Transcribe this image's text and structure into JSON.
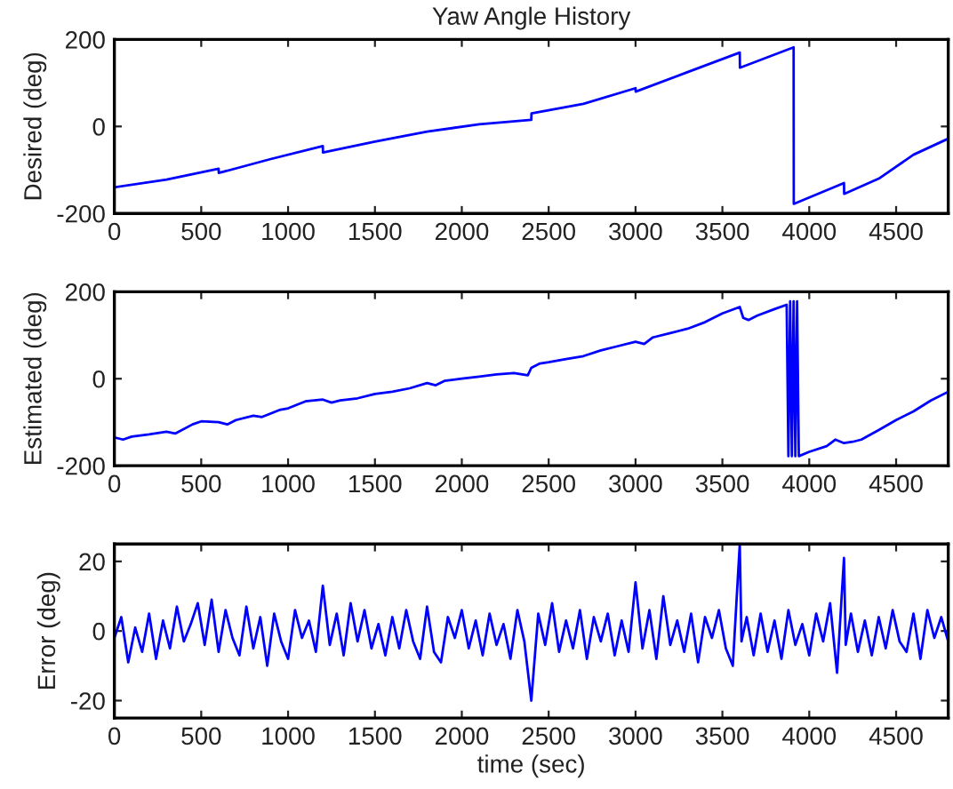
{
  "chart_data": [
    {
      "type": "line",
      "title": "Yaw Angle History",
      "ylabel": "Desired (deg)",
      "xlim": [
        0,
        4800
      ],
      "ylim": [
        -200,
        200
      ],
      "xticks": [
        0,
        500,
        1000,
        1500,
        2000,
        2500,
        3000,
        3500,
        4000,
        4500
      ],
      "yticks": [
        -200,
        0,
        200
      ],
      "grid": false,
      "legend": false,
      "series": [
        {
          "color": "#0000ff",
          "x": [
            0,
            300,
            600,
            601,
            900,
            1200,
            1201,
            1500,
            1800,
            2100,
            2400,
            2401,
            2700,
            3000,
            3001,
            3300,
            3600,
            3601,
            3910,
            3911,
            4200,
            4201,
            4400,
            4600,
            4800
          ],
          "values": [
            -140,
            -122,
            -97,
            -107,
            -75,
            -45,
            -60,
            -35,
            -12,
            5,
            15,
            30,
            52,
            88,
            80,
            125,
            170,
            135,
            182,
            -178,
            -130,
            -155,
            -120,
            -65,
            -28
          ]
        }
      ]
    },
    {
      "type": "line",
      "ylabel": "Estimated (deg)",
      "xlim": [
        0,
        4800
      ],
      "ylim": [
        -200,
        200
      ],
      "xticks": [
        0,
        500,
        1000,
        1500,
        2000,
        2500,
        3000,
        3500,
        4000,
        4500
      ],
      "yticks": [
        -200,
        0,
        200
      ],
      "grid": false,
      "legend": false,
      "series": [
        {
          "color": "#0000ff",
          "x": [
            0,
            50,
            100,
            200,
            300,
            350,
            450,
            500,
            600,
            650,
            700,
            800,
            850,
            950,
            1000,
            1100,
            1200,
            1250,
            1300,
            1400,
            1500,
            1600,
            1700,
            1800,
            1850,
            1900,
            2000,
            2100,
            2200,
            2300,
            2380,
            2400,
            2450,
            2500,
            2600,
            2700,
            2800,
            2900,
            3000,
            3050,
            3100,
            3200,
            3300,
            3400,
            3500,
            3600,
            3620,
            3650,
            3700,
            3800,
            3870,
            3880,
            3890,
            3900,
            3910,
            3920,
            3930,
            3940,
            4000,
            4100,
            4150,
            4200,
            4250,
            4300,
            4400,
            4500,
            4600,
            4700,
            4800
          ],
          "values": [
            -135,
            -140,
            -133,
            -128,
            -122,
            -126,
            -105,
            -98,
            -100,
            -105,
            -95,
            -85,
            -88,
            -72,
            -68,
            -52,
            -48,
            -55,
            -50,
            -45,
            -35,
            -30,
            -22,
            -10,
            -15,
            -5,
            0,
            5,
            10,
            13,
            8,
            25,
            35,
            38,
            45,
            52,
            65,
            75,
            85,
            80,
            95,
            105,
            115,
            130,
            150,
            165,
            140,
            135,
            145,
            160,
            170,
            -178,
            178,
            -178,
            178,
            -178,
            178,
            -178,
            -168,
            -155,
            -140,
            -148,
            -145,
            -140,
            -118,
            -95,
            -75,
            -50,
            -30
          ]
        }
      ]
    },
    {
      "type": "line",
      "ylabel": "Error (deg)",
      "xlabel": "time (sec)",
      "xlim": [
        0,
        4800
      ],
      "ylim": [
        -25,
        25
      ],
      "xticks": [
        0,
        500,
        1000,
        1500,
        2000,
        2500,
        3000,
        3500,
        4000,
        4500
      ],
      "yticks": [
        -20,
        0,
        20
      ],
      "grid": false,
      "legend": false,
      "series": [
        {
          "color": "#0000ff",
          "x": [
            0,
            40,
            80,
            120,
            160,
            200,
            240,
            280,
            320,
            360,
            400,
            440,
            480,
            520,
            560,
            600,
            640,
            680,
            720,
            760,
            800,
            840,
            880,
            920,
            960,
            1000,
            1040,
            1080,
            1120,
            1160,
            1200,
            1240,
            1280,
            1320,
            1360,
            1400,
            1440,
            1480,
            1520,
            1560,
            1600,
            1640,
            1680,
            1720,
            1760,
            1800,
            1840,
            1880,
            1920,
            1960,
            2000,
            2040,
            2080,
            2120,
            2160,
            2200,
            2240,
            2280,
            2320,
            2360,
            2400,
            2440,
            2480,
            2520,
            2560,
            2600,
            2640,
            2680,
            2720,
            2760,
            2800,
            2840,
            2880,
            2920,
            2960,
            3000,
            3040,
            3080,
            3120,
            3160,
            3200,
            3240,
            3280,
            3320,
            3360,
            3400,
            3440,
            3480,
            3520,
            3560,
            3600,
            3610,
            3640,
            3680,
            3720,
            3760,
            3800,
            3840,
            3880,
            3920,
            3960,
            4000,
            4040,
            4080,
            4120,
            4160,
            4200,
            4210,
            4240,
            4280,
            4320,
            4360,
            4400,
            4440,
            4480,
            4520,
            4560,
            4600,
            4640,
            4680,
            4720,
            4760,
            4800
          ],
          "values": [
            -2,
            4,
            -9,
            1,
            -6,
            5,
            -8,
            3,
            -5,
            7,
            -3,
            2,
            8,
            -4,
            9,
            -6,
            6,
            -2,
            -7,
            7,
            -5,
            4,
            -10,
            5,
            -3,
            -8,
            6,
            -2,
            3,
            -6,
            13,
            -4,
            5,
            -7,
            8,
            -3,
            6,
            -5,
            2,
            -7,
            4,
            -5,
            6,
            -3,
            -8,
            7,
            -6,
            -9,
            4,
            -2,
            6,
            -5,
            3,
            -7,
            5,
            -4,
            2,
            -8,
            6,
            -3,
            -20,
            5,
            -4,
            8,
            -6,
            3,
            -5,
            6,
            -8,
            4,
            -3,
            5,
            -7,
            3,
            -6,
            14,
            -5,
            6,
            -8,
            10,
            -4,
            3,
            -6,
            5,
            -9,
            4,
            -2,
            6,
            -5,
            -10,
            25,
            -3,
            4,
            -7,
            5,
            -6,
            3,
            -8,
            6,
            -4,
            2,
            -7,
            5,
            -3,
            8,
            -12,
            21,
            -4,
            5,
            -6,
            3,
            -7,
            4,
            -5,
            6,
            -3,
            -6,
            5,
            -8,
            6,
            -2,
            4,
            -3
          ]
        }
      ]
    }
  ]
}
